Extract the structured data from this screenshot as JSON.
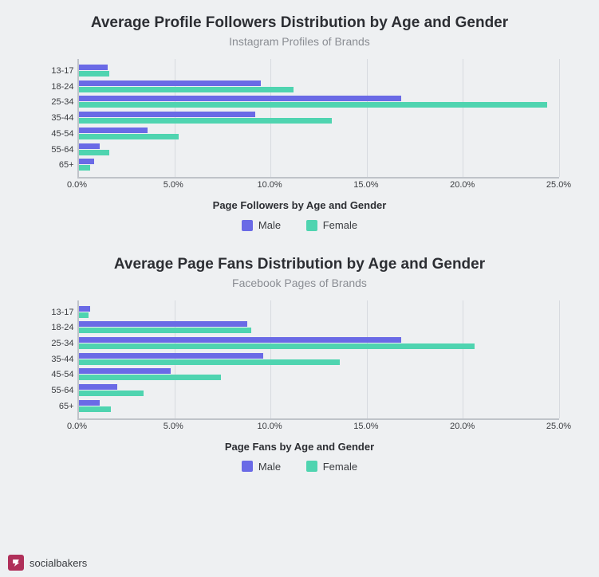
{
  "background_color": "#eef0f2",
  "colors": {
    "male": "#6a6ae6",
    "female": "#4fd4b0",
    "axis": "#bfc3c9",
    "grid": "#d7dadf"
  },
  "x_axis": {
    "min": 0,
    "max": 25,
    "step": 5,
    "suffix": "%",
    "decimals": 1
  },
  "categories": [
    "13-17",
    "18-24",
    "25-34",
    "35-44",
    "45-54",
    "55-64",
    "65+"
  ],
  "legend": {
    "male": "Male",
    "female": "Female"
  },
  "charts": [
    {
      "title": "Average Profile Followers Distribution by Age and Gender",
      "subtitle": "Instagram Profiles of Brands",
      "xlabel": "Page Followers by Age and Gender",
      "male": [
        1.5,
        9.5,
        16.8,
        9.2,
        3.6,
        1.1,
        0.8
      ],
      "female": [
        1.6,
        11.2,
        24.4,
        13.2,
        5.2,
        1.6,
        0.6
      ]
    },
    {
      "title": "Average Page Fans Distribution by Age and Gender",
      "subtitle": "Facebook Pages of Brands",
      "xlabel": "Page Fans by Age and Gender",
      "male": [
        0.6,
        8.8,
        16.8,
        9.6,
        4.8,
        2.0,
        1.1
      ],
      "female": [
        0.5,
        9.0,
        20.6,
        13.6,
        7.4,
        3.4,
        1.7
      ]
    }
  ],
  "footer": {
    "brand": "socialbakers"
  }
}
